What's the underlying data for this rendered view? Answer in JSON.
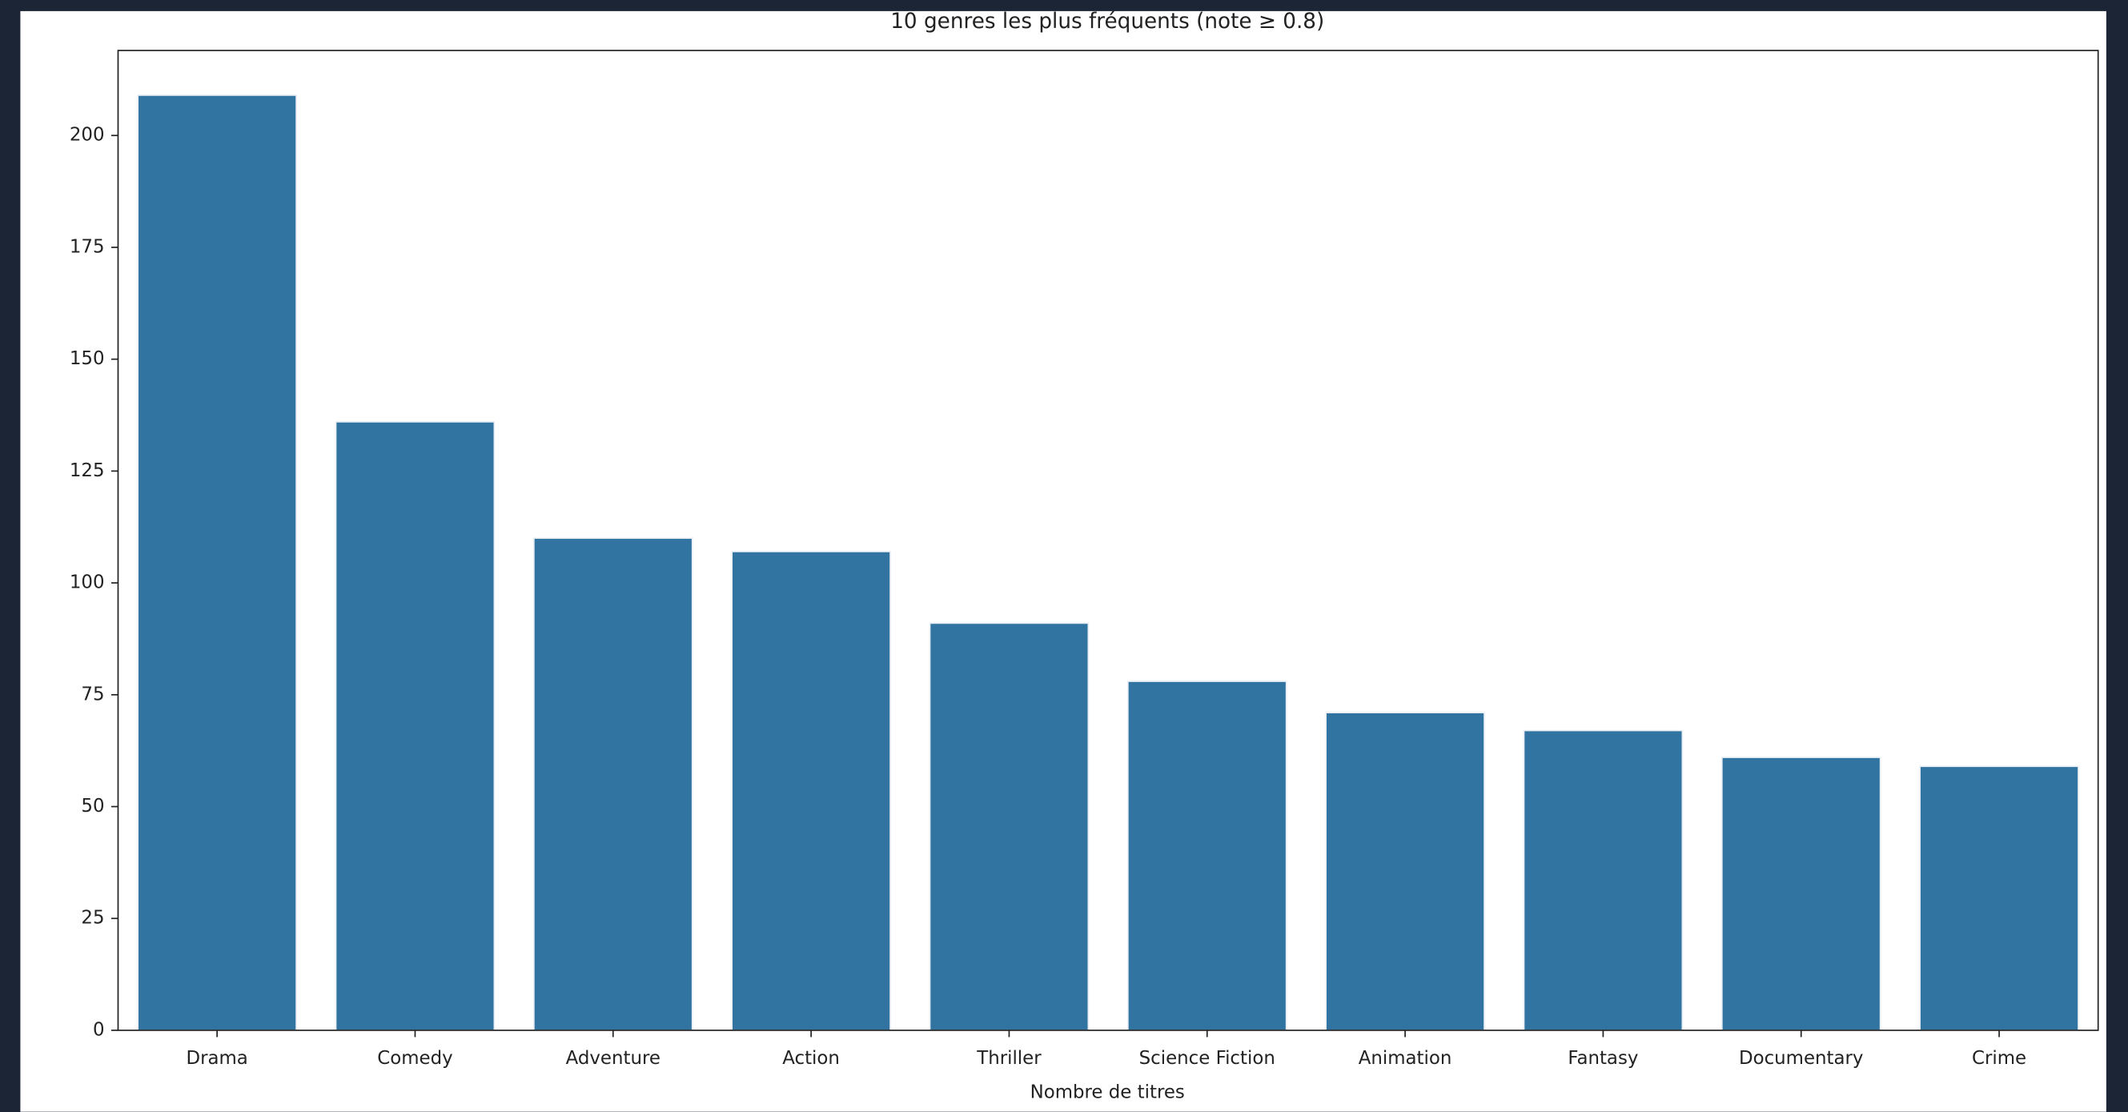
{
  "chart_data": {
    "type": "bar",
    "title": "10 genres les plus fréquents (note ≥ 0.8)",
    "x_label": "Nombre de titres",
    "categories": [
      "Drama",
      "Comedy",
      "Adventure",
      "Action",
      "Thriller",
      "Science Fiction",
      "Animation",
      "Fantasy",
      "Documentary",
      "Crime"
    ],
    "values": [
      209,
      136,
      110,
      107,
      91,
      78,
      71,
      67,
      61,
      59
    ],
    "color": "#3274a1",
    "ylim": [
      0,
      219
    ],
    "yticks": [
      0,
      25,
      50,
      75,
      100,
      125,
      150,
      175,
      200
    ],
    "grid": false
  }
}
